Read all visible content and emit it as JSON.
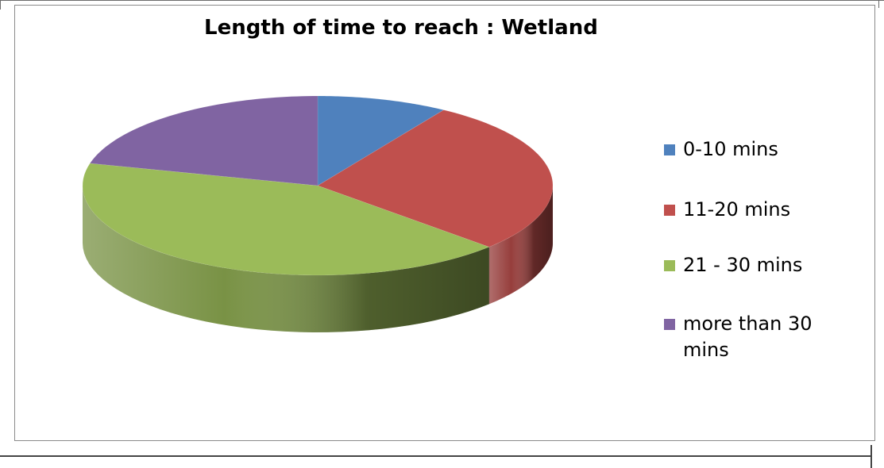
{
  "chart_data": {
    "type": "pie",
    "title": "Length of time to reach : Wetland",
    "categories": [
      "0-10 mins",
      "11-20 mins",
      "21 - 30 mins",
      "more than 30 mins"
    ],
    "values": [
      9,
      28,
      42,
      21
    ],
    "value_unit": "percent (estimated)",
    "colors": [
      "#4F81BD",
      "#C0504D",
      "#9BBB59",
      "#8064A2"
    ],
    "legend_position": "right",
    "style": "3d-tilted"
  },
  "legend": {
    "items": [
      {
        "label": "0-10 mins"
      },
      {
        "label": "11-20 mins"
      },
      {
        "label": "21 - 30 mins"
      },
      {
        "label": "more than 30 mins"
      }
    ]
  }
}
